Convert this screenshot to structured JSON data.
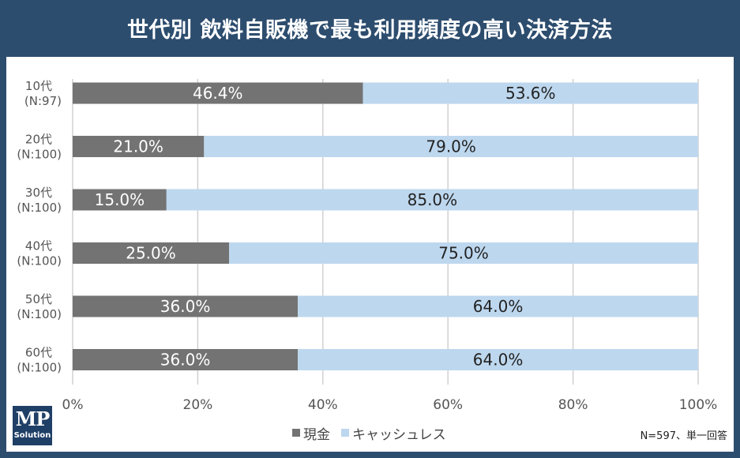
{
  "title": "世代別 飲料自販機で最も利用頻度の高い決済方法",
  "note": "N=597、単一回答",
  "logo": {
    "line1": "MP",
    "line2": "Solution"
  },
  "colors": {
    "cash": "#737373",
    "cashless": "#bdd7ee",
    "frame": "#2d4d6e",
    "grid": "#d0d0d0"
  },
  "chart_data": {
    "type": "bar",
    "orientation": "horizontal",
    "stacked": true,
    "percent_stacked": true,
    "categories": [
      {
        "line1": "10代",
        "line2": "(N:97)"
      },
      {
        "line1": "20代",
        "line2": "(N:100)"
      },
      {
        "line1": "30代",
        "line2": "(N:100)"
      },
      {
        "line1": "40代",
        "line2": "(N:100)"
      },
      {
        "line1": "50代",
        "line2": "(N:100)"
      },
      {
        "line1": "60代",
        "line2": "(N:100)"
      }
    ],
    "series": [
      {
        "name": "現金",
        "values": [
          46.4,
          21.0,
          15.0,
          25.0,
          36.0,
          36.0
        ]
      },
      {
        "name": "キャッシュレス",
        "values": [
          53.6,
          79.0,
          85.0,
          75.0,
          64.0,
          64.0
        ]
      }
    ],
    "xlim": [
      0,
      100
    ],
    "xticks": [
      "0%",
      "20%",
      "40%",
      "60%",
      "80%",
      "100%"
    ],
    "grid": true,
    "legend": "bottom-center"
  }
}
